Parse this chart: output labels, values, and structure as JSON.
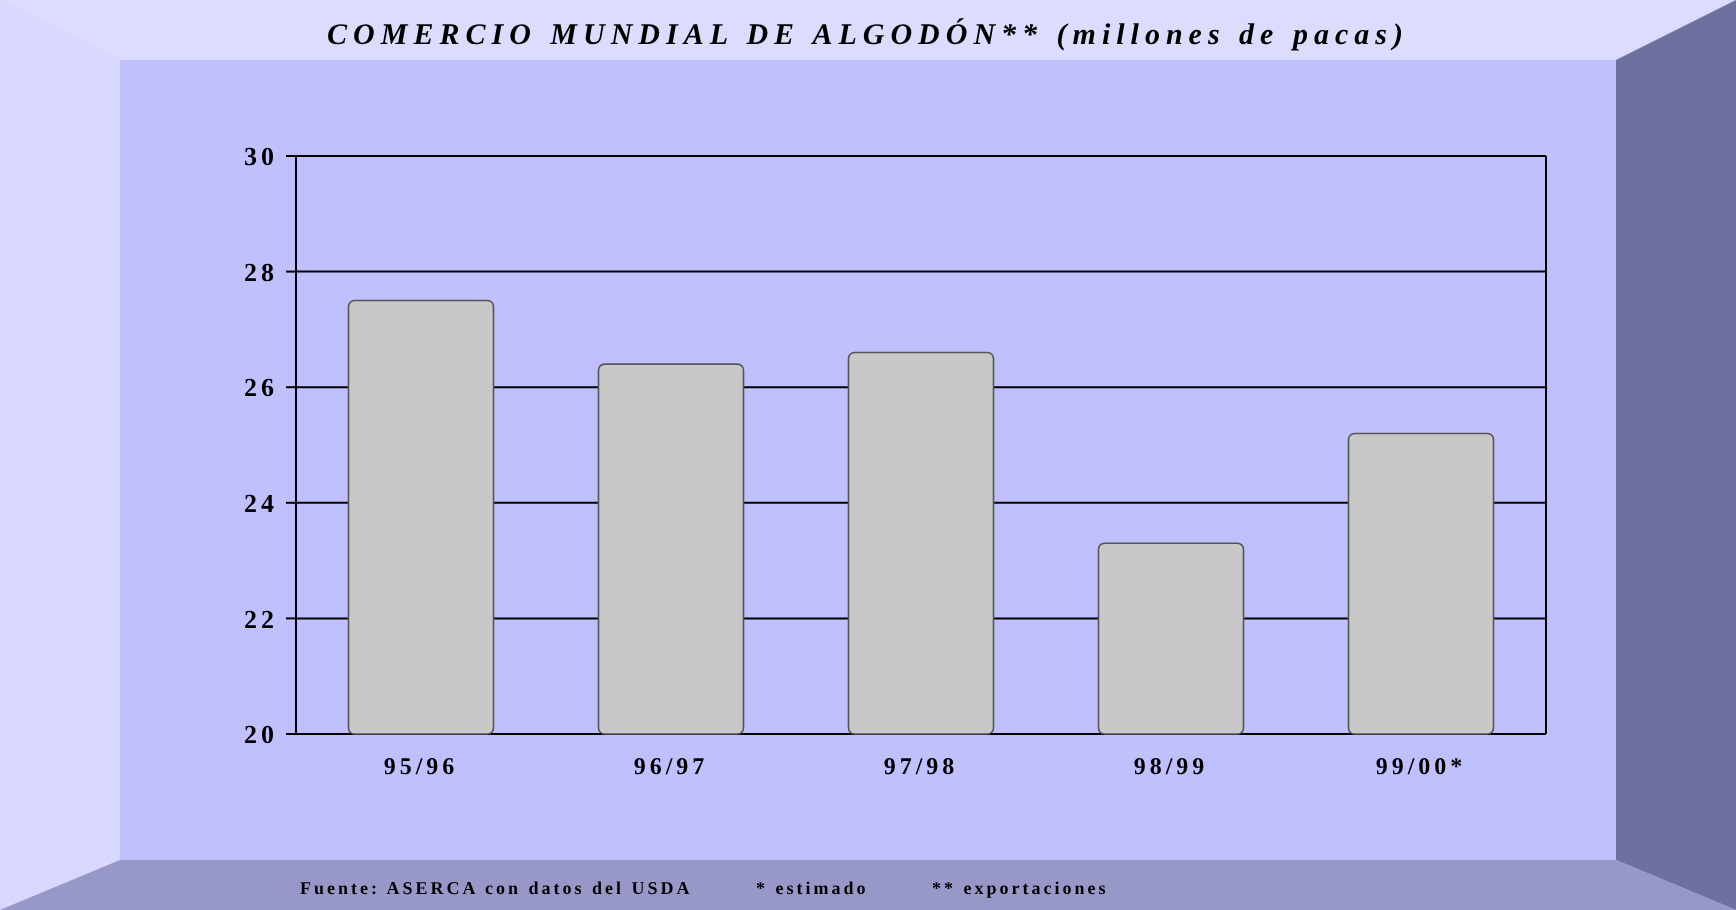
{
  "chart_data": {
    "type": "bar",
    "title": "COMERCIO MUNDIAL DE ALGODÓN** (millones de pacas)",
    "categories": [
      "95/96",
      "96/97",
      "97/98",
      "98/99",
      "99/00*"
    ],
    "values": [
      27.5,
      26.4,
      26.6,
      23.3,
      25.2
    ],
    "color": "#c8c8c8",
    "ylim": [
      20,
      30
    ],
    "yticks": [
      20,
      22,
      24,
      26,
      28,
      30
    ],
    "grid": "y",
    "annotations": [
      "Fuente: ASERCA con datos del USDA",
      "* estimado",
      "** exportaciones"
    ]
  }
}
